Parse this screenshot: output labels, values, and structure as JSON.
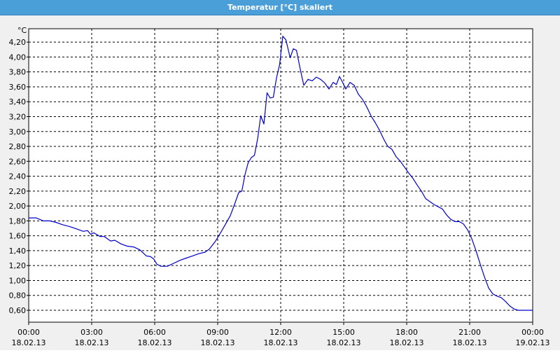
{
  "window": {
    "title": "Temperatur [°C] skaliert"
  },
  "chart_data": {
    "type": "line",
    "title": "Temperatur [°C] skaliert",
    "ylabel": "°C",
    "xlabel": "",
    "ylim": [
      0.44,
      4.38
    ],
    "xlim_hours": [
      0,
      24
    ],
    "grid": true,
    "y_ticks": [
      "4,20",
      "4,00",
      "3,80",
      "3,60",
      "3,40",
      "3,20",
      "3,00",
      "2,80",
      "2,60",
      "2,40",
      "2,20",
      "2,00",
      "1,80",
      "1,60",
      "1,40",
      "1,20",
      "1,00",
      "0,80",
      "0,60"
    ],
    "x_ticks": [
      {
        "time": "00:00",
        "date": "18.02.13"
      },
      {
        "time": "03:00",
        "date": "18.02.13"
      },
      {
        "time": "06:00",
        "date": "18.02.13"
      },
      {
        "time": "09:00",
        "date": "18.02.13"
      },
      {
        "time": "12:00",
        "date": "18.02.13"
      },
      {
        "time": "15:00",
        "date": "18.02.13"
      },
      {
        "time": "18:00",
        "date": "18.02.13"
      },
      {
        "time": "21:00",
        "date": "18.02.13"
      },
      {
        "time": "00:00",
        "date": "19.02.13"
      }
    ],
    "series": [
      {
        "color": "#0000cc",
        "x": [
          0.0,
          0.35,
          0.7,
          1.0,
          1.3,
          1.6,
          2.0,
          2.3,
          2.6,
          2.8,
          2.95,
          3.1,
          3.4,
          3.6,
          3.9,
          4.1,
          4.4,
          4.7,
          5.0,
          5.3,
          5.6,
          5.8,
          5.95,
          6.1,
          6.3,
          6.6,
          6.9,
          7.2,
          7.5,
          7.8,
          8.1,
          8.4,
          8.6,
          8.9,
          9.2,
          9.4,
          9.6,
          9.8,
          10.0,
          10.15,
          10.3,
          10.45,
          10.6,
          10.75,
          10.9,
          11.05,
          11.2,
          11.35,
          11.5,
          11.65,
          11.8,
          11.95,
          12.1,
          12.25,
          12.45,
          12.6,
          12.75,
          12.95,
          13.1,
          13.3,
          13.5,
          13.7,
          13.9,
          14.1,
          14.3,
          14.5,
          14.65,
          14.8,
          14.95,
          15.1,
          15.3,
          15.5,
          15.7,
          15.9,
          16.1,
          16.3,
          16.5,
          16.7,
          16.9,
          17.1,
          17.3,
          17.5,
          17.7,
          17.9,
          18.1,
          18.3,
          18.5,
          18.7,
          18.9,
          19.1,
          19.3,
          19.5,
          19.7,
          19.9,
          20.1,
          20.3,
          20.5,
          20.7,
          20.9,
          21.1,
          21.3,
          21.5,
          21.7,
          21.9,
          22.1,
          22.3,
          22.5,
          22.7,
          22.9,
          23.1,
          23.3,
          23.5,
          23.7,
          23.85,
          24.0
        ],
        "values": [
          1.84,
          1.84,
          1.8,
          1.8,
          1.78,
          1.75,
          1.72,
          1.69,
          1.66,
          1.67,
          1.62,
          1.64,
          1.59,
          1.59,
          1.53,
          1.54,
          1.49,
          1.46,
          1.45,
          1.41,
          1.33,
          1.32,
          1.29,
          1.22,
          1.19,
          1.19,
          1.23,
          1.27,
          1.3,
          1.33,
          1.36,
          1.38,
          1.42,
          1.53,
          1.67,
          1.77,
          1.87,
          2.02,
          2.18,
          2.2,
          2.42,
          2.58,
          2.65,
          2.68,
          2.9,
          3.21,
          3.1,
          3.52,
          3.45,
          3.46,
          3.72,
          3.9,
          4.28,
          4.23,
          3.99,
          4.11,
          4.09,
          3.81,
          3.62,
          3.7,
          3.68,
          3.73,
          3.7,
          3.65,
          3.57,
          3.66,
          3.63,
          3.74,
          3.66,
          3.57,
          3.66,
          3.62,
          3.5,
          3.43,
          3.33,
          3.21,
          3.12,
          3.02,
          2.9,
          2.8,
          2.76,
          2.66,
          2.6,
          2.52,
          2.44,
          2.37,
          2.28,
          2.2,
          2.1,
          2.06,
          2.02,
          1.99,
          1.96,
          1.88,
          1.82,
          1.79,
          1.79,
          1.76,
          1.68,
          1.56,
          1.4,
          1.22,
          1.05,
          0.9,
          0.82,
          0.79,
          0.77,
          0.72,
          0.66,
          0.62,
          0.6,
          0.6,
          0.6,
          0.6,
          0.6
        ]
      }
    ]
  }
}
